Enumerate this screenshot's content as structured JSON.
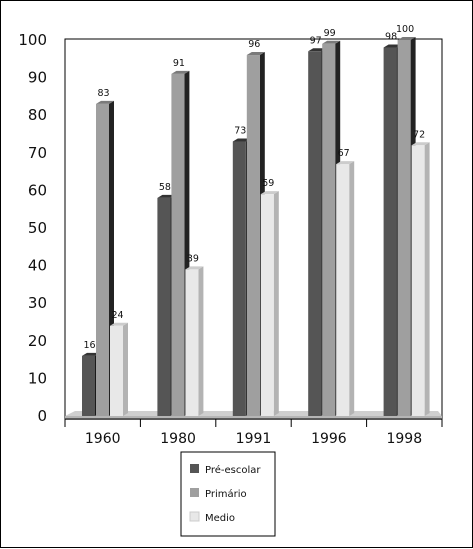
{
  "chart_data": {
    "type": "bar",
    "categories": [
      "1960",
      "1980",
      "1991",
      "1996",
      "1998"
    ],
    "series": [
      {
        "name": "Pré-escolar",
        "values": [
          16,
          58,
          73,
          97,
          98
        ],
        "color": "#555555"
      },
      {
        "name": "Primário",
        "values": [
          83,
          91,
          96,
          99,
          100
        ],
        "color": "#9f9f9f"
      },
      {
        "name": "Medio",
        "values": [
          24,
          39,
          59,
          67,
          72
        ],
        "color": "#e8e8e8"
      }
    ],
    "value_labels": [
      [
        "16",
        "58",
        "73",
        "97",
        "98"
      ],
      [
        "83",
        "91",
        "96",
        "99",
        "100"
      ],
      [
        "24",
        "39",
        "59",
        "67",
        "72"
      ]
    ],
    "yticks": [
      "0",
      "10",
      "20",
      "30",
      "40",
      "50",
      "60",
      "70",
      "80",
      "90",
      "100"
    ],
    "ylim": [
      0,
      100
    ],
    "grid": false,
    "legend_position": "bottom-center",
    "style": "3d-shaded-bars",
    "title": "",
    "xlabel": "",
    "ylabel": ""
  }
}
